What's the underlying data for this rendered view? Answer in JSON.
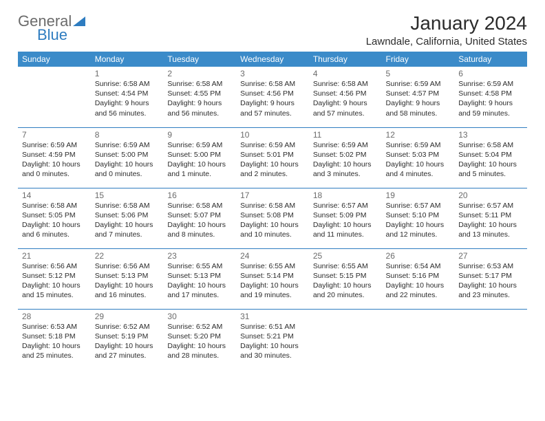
{
  "brand": {
    "word1": "General",
    "word2": "Blue"
  },
  "title": "January 2024",
  "location": "Lawndale, California, United States",
  "header_bg": "#3b8bc9",
  "accent": "#2e7cc0",
  "weekdays": [
    "Sunday",
    "Monday",
    "Tuesday",
    "Wednesday",
    "Thursday",
    "Friday",
    "Saturday"
  ],
  "labels": {
    "sunrise": "Sunrise:",
    "sunset": "Sunset:",
    "daylight": "Daylight:"
  },
  "weeks": [
    [
      null,
      {
        "day": "1",
        "sunrise": "6:58 AM",
        "sunset": "4:54 PM",
        "daylight": "9 hours and 56 minutes."
      },
      {
        "day": "2",
        "sunrise": "6:58 AM",
        "sunset": "4:55 PM",
        "daylight": "9 hours and 56 minutes."
      },
      {
        "day": "3",
        "sunrise": "6:58 AM",
        "sunset": "4:56 PM",
        "daylight": "9 hours and 57 minutes."
      },
      {
        "day": "4",
        "sunrise": "6:58 AM",
        "sunset": "4:56 PM",
        "daylight": "9 hours and 57 minutes."
      },
      {
        "day": "5",
        "sunrise": "6:59 AM",
        "sunset": "4:57 PM",
        "daylight": "9 hours and 58 minutes."
      },
      {
        "day": "6",
        "sunrise": "6:59 AM",
        "sunset": "4:58 PM",
        "daylight": "9 hours and 59 minutes."
      }
    ],
    [
      {
        "day": "7",
        "sunrise": "6:59 AM",
        "sunset": "4:59 PM",
        "daylight": "10 hours and 0 minutes."
      },
      {
        "day": "8",
        "sunrise": "6:59 AM",
        "sunset": "5:00 PM",
        "daylight": "10 hours and 0 minutes."
      },
      {
        "day": "9",
        "sunrise": "6:59 AM",
        "sunset": "5:00 PM",
        "daylight": "10 hours and 1 minute."
      },
      {
        "day": "10",
        "sunrise": "6:59 AM",
        "sunset": "5:01 PM",
        "daylight": "10 hours and 2 minutes."
      },
      {
        "day": "11",
        "sunrise": "6:59 AM",
        "sunset": "5:02 PM",
        "daylight": "10 hours and 3 minutes."
      },
      {
        "day": "12",
        "sunrise": "6:59 AM",
        "sunset": "5:03 PM",
        "daylight": "10 hours and 4 minutes."
      },
      {
        "day": "13",
        "sunrise": "6:58 AM",
        "sunset": "5:04 PM",
        "daylight": "10 hours and 5 minutes."
      }
    ],
    [
      {
        "day": "14",
        "sunrise": "6:58 AM",
        "sunset": "5:05 PM",
        "daylight": "10 hours and 6 minutes."
      },
      {
        "day": "15",
        "sunrise": "6:58 AM",
        "sunset": "5:06 PM",
        "daylight": "10 hours and 7 minutes."
      },
      {
        "day": "16",
        "sunrise": "6:58 AM",
        "sunset": "5:07 PM",
        "daylight": "10 hours and 8 minutes."
      },
      {
        "day": "17",
        "sunrise": "6:58 AM",
        "sunset": "5:08 PM",
        "daylight": "10 hours and 10 minutes."
      },
      {
        "day": "18",
        "sunrise": "6:57 AM",
        "sunset": "5:09 PM",
        "daylight": "10 hours and 11 minutes."
      },
      {
        "day": "19",
        "sunrise": "6:57 AM",
        "sunset": "5:10 PM",
        "daylight": "10 hours and 12 minutes."
      },
      {
        "day": "20",
        "sunrise": "6:57 AM",
        "sunset": "5:11 PM",
        "daylight": "10 hours and 13 minutes."
      }
    ],
    [
      {
        "day": "21",
        "sunrise": "6:56 AM",
        "sunset": "5:12 PM",
        "daylight": "10 hours and 15 minutes."
      },
      {
        "day": "22",
        "sunrise": "6:56 AM",
        "sunset": "5:13 PM",
        "daylight": "10 hours and 16 minutes."
      },
      {
        "day": "23",
        "sunrise": "6:55 AM",
        "sunset": "5:13 PM",
        "daylight": "10 hours and 17 minutes."
      },
      {
        "day": "24",
        "sunrise": "6:55 AM",
        "sunset": "5:14 PM",
        "daylight": "10 hours and 19 minutes."
      },
      {
        "day": "25",
        "sunrise": "6:55 AM",
        "sunset": "5:15 PM",
        "daylight": "10 hours and 20 minutes."
      },
      {
        "day": "26",
        "sunrise": "6:54 AM",
        "sunset": "5:16 PM",
        "daylight": "10 hours and 22 minutes."
      },
      {
        "day": "27",
        "sunrise": "6:53 AM",
        "sunset": "5:17 PM",
        "daylight": "10 hours and 23 minutes."
      }
    ],
    [
      {
        "day": "28",
        "sunrise": "6:53 AM",
        "sunset": "5:18 PM",
        "daylight": "10 hours and 25 minutes."
      },
      {
        "day": "29",
        "sunrise": "6:52 AM",
        "sunset": "5:19 PM",
        "daylight": "10 hours and 27 minutes."
      },
      {
        "day": "30",
        "sunrise": "6:52 AM",
        "sunset": "5:20 PM",
        "daylight": "10 hours and 28 minutes."
      },
      {
        "day": "31",
        "sunrise": "6:51 AM",
        "sunset": "5:21 PM",
        "daylight": "10 hours and 30 minutes."
      },
      null,
      null,
      null
    ]
  ]
}
